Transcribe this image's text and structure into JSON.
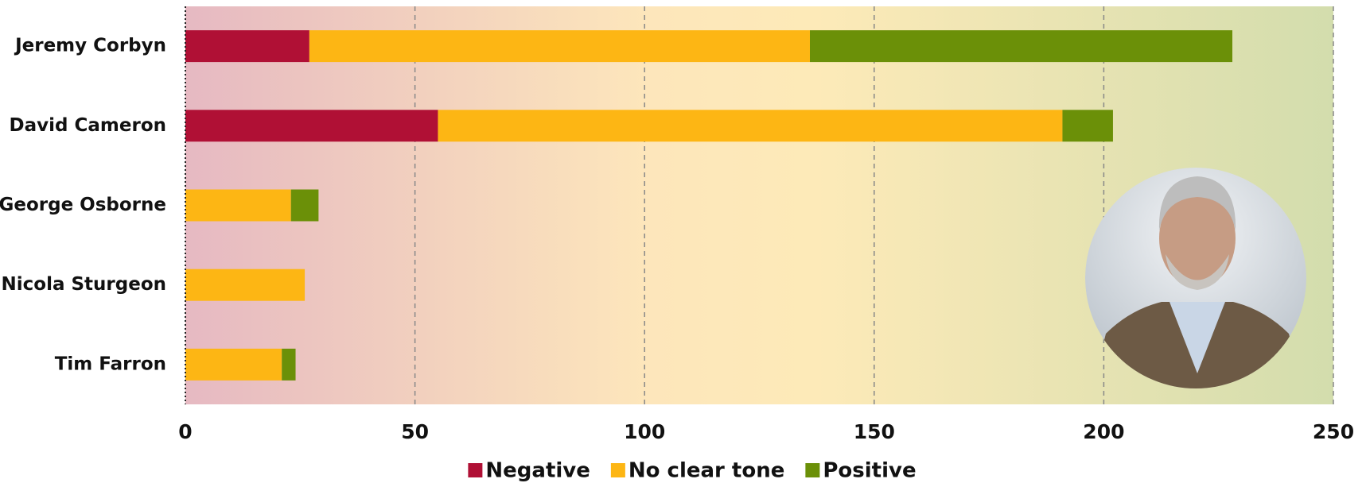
{
  "chart_data": {
    "type": "stacked-barh",
    "categories": [
      "Jeremy Corbyn",
      "David Cameron",
      "George Osborne",
      "Nicola Sturgeon",
      "Tim Farron"
    ],
    "series": [
      {
        "name": "Negative",
        "color": "#b01035",
        "values": [
          27,
          55,
          0,
          0,
          0
        ]
      },
      {
        "name": "No clear tone",
        "color": "#fdb614",
        "values": [
          109,
          136,
          23,
          26,
          21
        ]
      },
      {
        "name": "Positive",
        "color": "#6b9008",
        "values": [
          92,
          11,
          6,
          0,
          3
        ]
      }
    ],
    "xlim": [
      0,
      250
    ],
    "xticks": [
      0,
      50,
      100,
      150,
      200,
      250
    ],
    "grid": true
  }
}
